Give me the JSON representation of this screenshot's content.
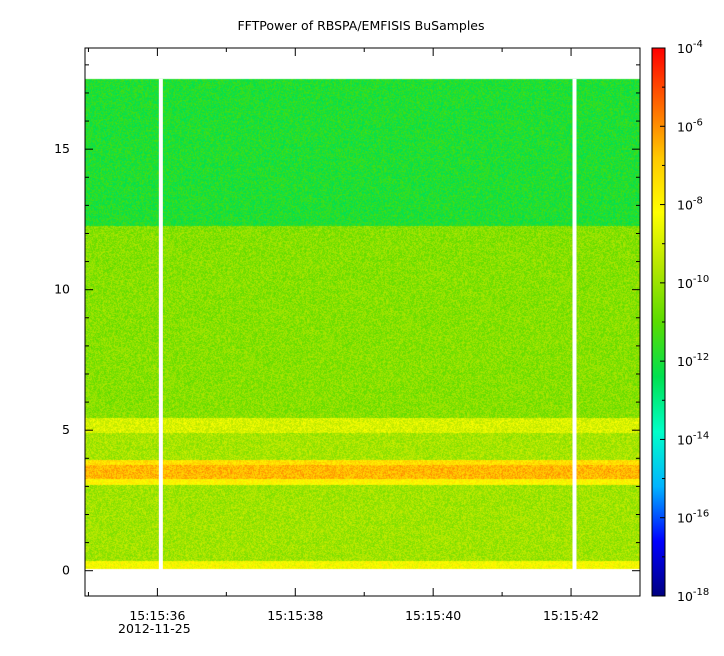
{
  "chart_data": {
    "type": "heatmap",
    "title": "FFTPower of RBSPA/EMFISIS  BuSamples",
    "xlabel": "",
    "ylabel": "",
    "x_range": [
      "15:15:34.95",
      "15:15:43.00"
    ],
    "x_ticks": [
      "15:15:36",
      "15:15:38",
      "15:15:40",
      "15:15:42"
    ],
    "x_date_label": "2012-11-25",
    "y_range": [
      -0.9,
      18.6
    ],
    "y_ticks": [
      0,
      5,
      10,
      15
    ],
    "z_scale": "log",
    "z_range": [
      "1e-18",
      "1e-4"
    ],
    "z_ticks": [
      {
        "base": "10",
        "exp": "-4"
      },
      {
        "base": "10",
        "exp": "-6"
      },
      {
        "base": "10",
        "exp": "-8"
      },
      {
        "base": "10",
        "exp": "-10"
      },
      {
        "base": "10",
        "exp": "-12"
      },
      {
        "base": "10",
        "exp": "-14"
      },
      {
        "base": "10",
        "exp": "-16"
      },
      {
        "base": "10",
        "exp": "-18"
      }
    ],
    "colormap": [
      "#000080",
      "#0000ff",
      "#00b4ff",
      "#00ffc8",
      "#00e050",
      "#5adc00",
      "#b4e600",
      "#ffff00",
      "#ffc800",
      "#ff6400",
      "#ff0000"
    ],
    "data_gaps": [
      "15:15:36.05",
      "15:15:42.05"
    ],
    "data_coverage": {
      "freq_min": 0.05,
      "freq_max": 17.5
    },
    "bands": [
      {
        "freq_from": 0.05,
        "freq_to": 0.35,
        "log_power": -8.3
      },
      {
        "freq_from": 0.35,
        "freq_to": 3.05,
        "log_power": -9.9
      },
      {
        "freq_from": 3.05,
        "freq_to": 3.25,
        "log_power": -8.0
      },
      {
        "freq_from": 3.25,
        "freq_to": 3.75,
        "log_power": -6.6
      },
      {
        "freq_from": 3.75,
        "freq_to": 3.95,
        "log_power": -7.4
      },
      {
        "freq_from": 3.95,
        "freq_to": 4.9,
        "log_power": -9.8
      },
      {
        "freq_from": 4.9,
        "freq_to": 5.45,
        "log_power": -8.9
      },
      {
        "freq_from": 5.45,
        "freq_to": 12.25,
        "log_power": -10.3
      },
      {
        "freq_from": 12.25,
        "freq_to": 17.5,
        "log_power": -11.9
      }
    ]
  }
}
